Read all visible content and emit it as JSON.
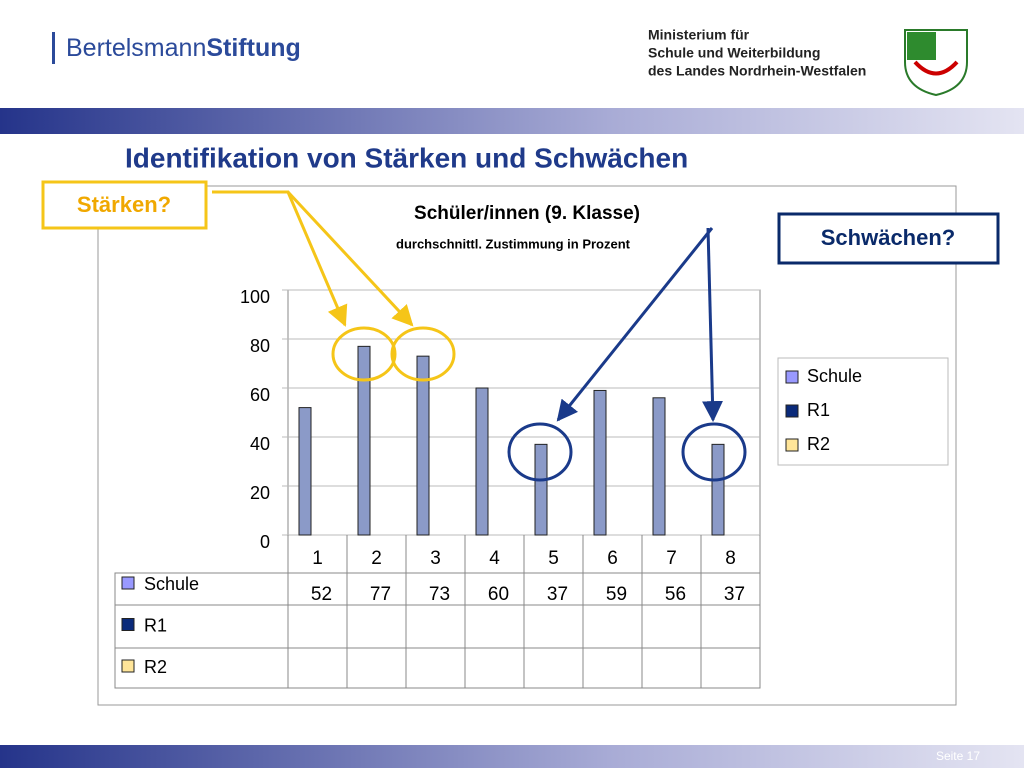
{
  "header": {
    "logo": {
      "name": "Bertelsmann",
      "suffix": "Stiftung"
    },
    "ministry": [
      "Ministerium für",
      "Schule und Weiterbildung",
      "des Landes Nordrhein-Westfalen"
    ]
  },
  "slide_title": "Identifikation von Stärken und Schwächen",
  "annotations": {
    "strengths": "Stärken?",
    "weaknesses": "Schwächen?"
  },
  "chart_data": {
    "type": "bar",
    "title": "Schüler/innen (9. Klasse)",
    "subtitle": "durchschnittl. Zustimmung in Prozent",
    "categories": [
      "1",
      "2",
      "3",
      "4",
      "5",
      "6",
      "7",
      "8"
    ],
    "series": [
      {
        "name": "Schule",
        "color": "#8b9ac8",
        "legend_color": "#9999ff",
        "values": [
          52,
          77,
          73,
          60,
          37,
          59,
          56,
          37
        ]
      },
      {
        "name": "R1",
        "color": "#0a2a7a",
        "legend_color": "#0a2a7a",
        "values": [
          null,
          null,
          null,
          null,
          null,
          null,
          null,
          null
        ]
      },
      {
        "name": "R2",
        "color": "#ffe599",
        "legend_color": "#ffe599",
        "values": [
          null,
          null,
          null,
          null,
          null,
          null,
          null,
          null
        ]
      }
    ],
    "ylim": [
      0,
      100
    ],
    "yticks": [
      0,
      20,
      40,
      60,
      80,
      100
    ],
    "grid": true,
    "legend": "right",
    "data_table": true
  },
  "footer": "Seite 17"
}
